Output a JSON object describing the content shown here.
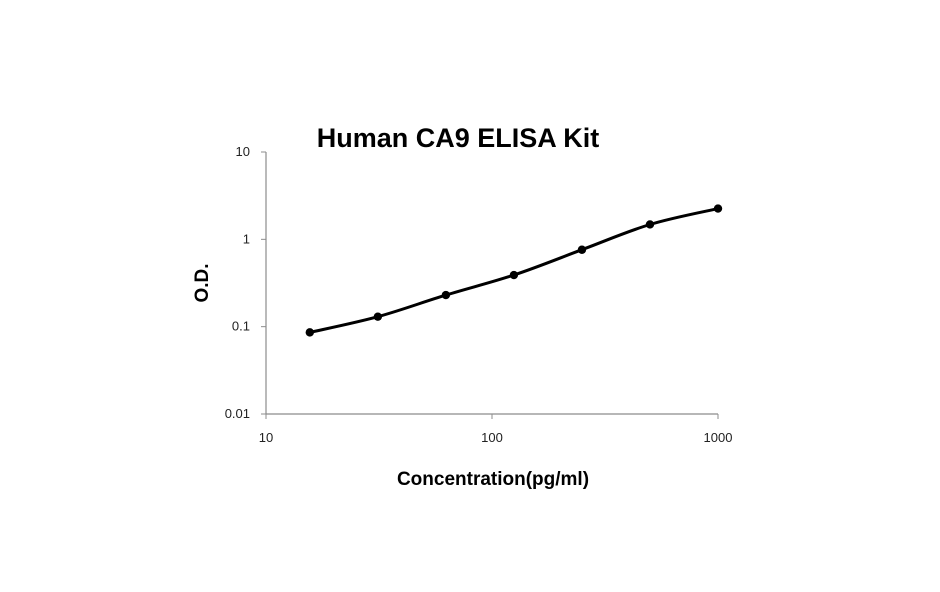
{
  "chart_data": {
    "type": "line",
    "title": "Human CA9 ELISA Kit",
    "xlabel": "Concentration(pg/ml)",
    "ylabel": "O.D.",
    "x_scale": "log",
    "y_scale": "log",
    "xlim": [
      10,
      1000
    ],
    "ylim": [
      0.01,
      10
    ],
    "x_ticks": [
      10,
      100,
      1000
    ],
    "x_tick_labels": [
      "10",
      "100",
      "1000"
    ],
    "y_ticks": [
      0.01,
      0.1,
      1,
      10
    ],
    "y_tick_labels": [
      "0.01",
      "0.1",
      "1",
      "10"
    ],
    "grid": false,
    "legend": false,
    "line_color": "#000000",
    "marker_color": "#000000",
    "series": [
      {
        "x": [
          15.625,
          31.25,
          62.5,
          125,
          250,
          500,
          1000
        ],
        "y": [
          0.086,
          0.13,
          0.23,
          0.39,
          0.76,
          1.48,
          2.25
        ]
      }
    ]
  }
}
